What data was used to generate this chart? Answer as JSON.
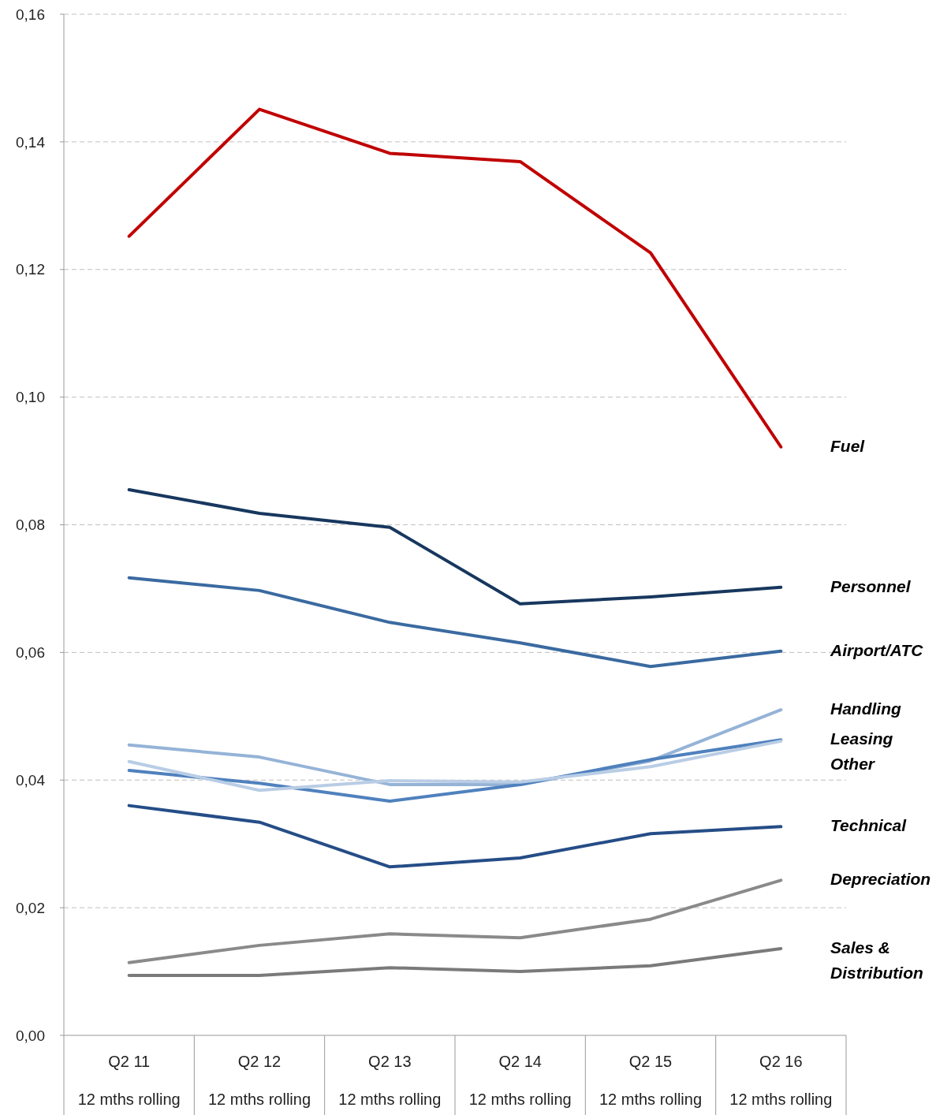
{
  "chart_data": {
    "type": "line",
    "categories": [
      "Q2 11\n12 mths rolling",
      "Q2 12\n12 mths rolling",
      "Q2 13\n12 mths rolling",
      "Q2 14\n12 mths rolling",
      "Q2 15\n12 mths rolling",
      "Q2 16\n12 mths rolling"
    ],
    "ylim": [
      0,
      0.16
    ],
    "yticks": [
      {
        "value": 0,
        "label": "0,00"
      },
      {
        "value": 0.02,
        "label": "0,02"
      },
      {
        "value": 0.04,
        "label": "0,04"
      },
      {
        "value": 0.06,
        "label": "0,06"
      },
      {
        "value": 0.08,
        "label": "0,08"
      },
      {
        "value": 0.1,
        "label": "0,10"
      },
      {
        "value": 0.12,
        "label": "0,12"
      },
      {
        "value": 0.14,
        "label": "0,14"
      },
      {
        "value": 0.16,
        "label": "0,16"
      }
    ],
    "grid": "y",
    "legend": false,
    "marker": "none",
    "line_style": "solid",
    "series": [
      {
        "name": "Fuel",
        "color": "#c00000",
        "values": [
          0.1252,
          0.1451,
          0.1382,
          0.1369,
          0.1226,
          0.0922
        ]
      },
      {
        "name": "Personnel",
        "color": "#17375e",
        "values": [
          0.0855,
          0.0818,
          0.0796,
          0.0676,
          0.0687,
          0.0702
        ]
      },
      {
        "name": "Airport/ATC",
        "color": "#3a6aa0",
        "values": [
          0.0717,
          0.0697,
          0.0647,
          0.0615,
          0.0578,
          0.0602
        ]
      },
      {
        "name": "Handling",
        "color": "#95b3d7",
        "values": [
          0.0455,
          0.0436,
          0.0393,
          0.0393,
          0.043,
          0.051
        ]
      },
      {
        "name": "Leasing",
        "color": "#4f81bd",
        "values": [
          0.0415,
          0.0395,
          0.0367,
          0.0393,
          0.0432,
          0.0463
        ]
      },
      {
        "name": "Other",
        "color": "#b9cde5",
        "values": [
          0.0429,
          0.0384,
          0.0399,
          0.0397,
          0.0421,
          0.0461
        ]
      },
      {
        "name": "Technical",
        "color": "#254d87",
        "values": [
          0.036,
          0.0334,
          0.0264,
          0.0278,
          0.0316,
          0.0327
        ]
      },
      {
        "name": "Depreciation",
        "color": "#8a8a8a",
        "values": [
          0.0114,
          0.0141,
          0.0159,
          0.0153,
          0.0182,
          0.0243
        ]
      },
      {
        "name": "Sales &\nDistribution",
        "color": "#7a7a7a",
        "values": [
          0.0094,
          0.0094,
          0.0106,
          0.01,
          0.0109,
          0.0136
        ]
      }
    ]
  }
}
